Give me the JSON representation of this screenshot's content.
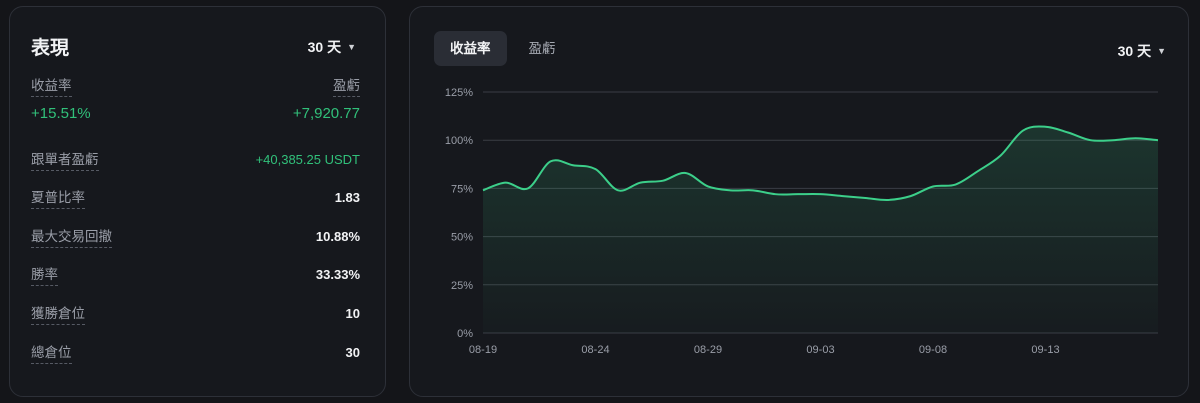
{
  "performance": {
    "title": "表現",
    "range": "30 天",
    "return_rate": {
      "label": "收益率",
      "value": "+15.51%"
    },
    "pnl": {
      "label": "盈虧",
      "value": "+7,920.77"
    },
    "stats": [
      {
        "label": "跟單者盈虧",
        "value": "+40,385.25 USDT",
        "accent": "green"
      },
      {
        "label": "夏普比率",
        "value": "1.83"
      },
      {
        "label": "最大交易回撤",
        "value": "10.88%"
      },
      {
        "label": "勝率",
        "value": "33.33%"
      },
      {
        "label": "獲勝倉位",
        "value": "10"
      },
      {
        "label": "總倉位",
        "value": "30"
      }
    ]
  },
  "chart_panel": {
    "tabs": [
      "收益率",
      "盈虧"
    ],
    "active_tab": "收益率",
    "range": "30 天"
  },
  "colors": {
    "positive": "#31c07a",
    "line": "#3ccf8a",
    "grid": "#3a3d45"
  },
  "chart_data": {
    "type": "area",
    "title": "",
    "xlabel": "",
    "ylabel": "",
    "x_ticks": [
      "08-19",
      "08-24",
      "08-29",
      "09-03",
      "09-08",
      "09-13"
    ],
    "y_ticks": [
      "0%",
      "25%",
      "50%",
      "75%",
      "100%",
      "125%"
    ],
    "ylim": [
      0,
      125
    ],
    "grid": true,
    "series": [
      {
        "x": [
          "08-19",
          "08-20",
          "08-21",
          "08-22",
          "08-23",
          "08-24",
          "08-25",
          "08-26",
          "08-27",
          "08-28",
          "08-29",
          "08-30",
          "08-31",
          "09-01",
          "09-02",
          "09-03",
          "09-04",
          "09-05",
          "09-06",
          "09-07",
          "09-08",
          "09-09",
          "09-10",
          "09-11",
          "09-12",
          "09-13",
          "09-14",
          "09-15",
          "09-16",
          "09-17",
          "09-18"
        ],
        "values": [
          74,
          78,
          75,
          89,
          87,
          85,
          74,
          78,
          79,
          83,
          76,
          74,
          74,
          72,
          72,
          72,
          71,
          70,
          69,
          71,
          76,
          77,
          84,
          92,
          105,
          107,
          104,
          100,
          100,
          101,
          100
        ]
      }
    ]
  }
}
